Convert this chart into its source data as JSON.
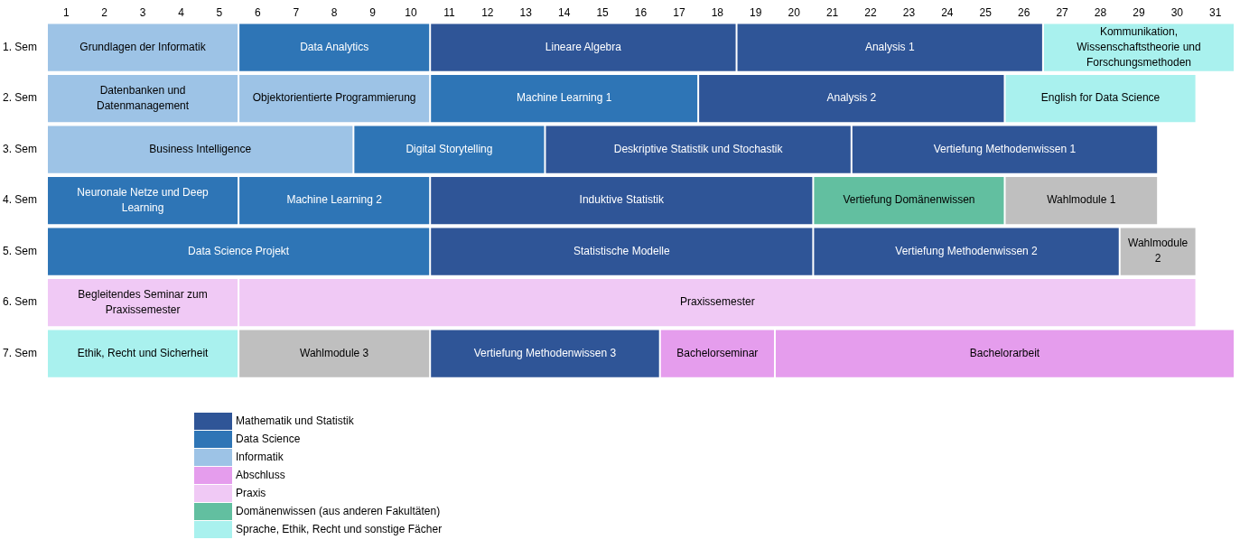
{
  "chart_data": {
    "type": "bar",
    "orientation": "horizontal",
    "stacked": true,
    "legend": "bottom left",
    "grid": false,
    "categories": [
      "1. Sem",
      "2. Sem",
      "3. Sem",
      "4. Sem",
      "5. Sem",
      "6. Sem",
      "7. Sem"
    ],
    "xlim": [
      0,
      31
    ],
    "xticks": [
      {
        "value": 0.5,
        "label": "1"
      },
      {
        "value": 1.5,
        "label": "2"
      },
      {
        "value": 2.5,
        "label": "3"
      },
      {
        "value": 3.5,
        "label": "4"
      },
      {
        "value": 4.5,
        "label": "5"
      },
      {
        "value": 5.5,
        "label": "6"
      },
      {
        "value": 6.5,
        "label": "7"
      },
      {
        "value": 7.5,
        "label": "8"
      },
      {
        "value": 8.5,
        "label": "9"
      },
      {
        "value": 9.5,
        "label": "10"
      },
      {
        "value": 10.5,
        "label": "11"
      },
      {
        "value": 11.5,
        "label": "12"
      },
      {
        "value": 12.5,
        "label": "13"
      },
      {
        "value": 13.5,
        "label": "14"
      },
      {
        "value": 14.5,
        "label": "15"
      },
      {
        "value": 15.5,
        "label": "16"
      },
      {
        "value": 16.5,
        "label": "17"
      },
      {
        "value": 17.5,
        "label": "18"
      },
      {
        "value": 18.5,
        "label": "19"
      },
      {
        "value": 19.5,
        "label": "20"
      },
      {
        "value": 20.5,
        "label": "21"
      },
      {
        "value": 21.5,
        "label": "22"
      },
      {
        "value": 22.5,
        "label": "23"
      },
      {
        "value": 23.5,
        "label": "24"
      },
      {
        "value": 24.5,
        "label": "25"
      },
      {
        "value": 25.5,
        "label": "26"
      },
      {
        "value": 26.5,
        "label": "27"
      },
      {
        "value": 27.5,
        "label": "28"
      },
      {
        "value": 28.5,
        "label": "29"
      },
      {
        "value": 29.5,
        "label": "30"
      },
      {
        "value": 30.5,
        "label": "31"
      }
    ],
    "series": [
      {
        "values": [
          5,
          5,
          8,
          5,
          10,
          5,
          5
        ],
        "colors": [
          "#9dc3e6",
          "#9dc3e6",
          "#9dc3e6",
          "#2e75b6",
          "#2e75b6",
          "#f0c9f5",
          "#a9f1ee"
        ],
        "value_labels": [
          "Grundlagen der Informatik",
          "Datenbanken und Datenmanagement",
          "Business Intelligence",
          "Neuronale Netze und Deep Learning",
          "Data Science Projekt",
          "Begleitendes Seminar zum Praxissemester",
          "Ethik, Recht und Sicherheit"
        ]
      },
      {
        "values": [
          5,
          5,
          5,
          5,
          10,
          25,
          5
        ],
        "colors": [
          "#2e75b6",
          "#9dc3e6",
          "#2e75b6",
          "#2e75b6",
          "#2f5597",
          "#f0c9f5",
          "#bfbfbf"
        ],
        "value_labels": [
          "Data Analytics",
          "Objektorientierte Programmierung",
          "Digital Storytelling",
          "Machine Learning 2",
          "Statistische Modelle",
          "Praxissemester",
          "Wahlmodule 3"
        ]
      },
      {
        "values": [
          8,
          7,
          8,
          10,
          8,
          null,
          6
        ],
        "colors": [
          "#2f5597",
          "#2e75b6",
          "#2f5597",
          "#2f5597",
          "#2f5597",
          null,
          "#2f5597"
        ],
        "value_labels": [
          "Lineare Algebra",
          "Machine Learning 1",
          "Deskriptive Statistik und Stochastik",
          "Induktive Statistik",
          "Vertiefung Methodenwissen 2",
          null,
          "Vertiefung Methodenwissen 3"
        ]
      },
      {
        "values": [
          8,
          8,
          8,
          5,
          2,
          null,
          3
        ],
        "colors": [
          "#2f5597",
          "#2f5597",
          "#2f5597",
          "#62bfa0",
          "#bfbfbf",
          null,
          "#e59ded"
        ],
        "value_labels": [
          "Analysis 1",
          "Analysis 2",
          "Vertiefung Methodenwissen 1",
          "Vertiefung Domänenwissen",
          "Wahlmodule 2",
          null,
          "Bachelorseminar"
        ]
      },
      {
        "values": [
          5,
          5,
          null,
          4,
          null,
          null,
          12
        ],
        "colors": [
          "#a9f1ee",
          "#a9f1ee",
          null,
          "#bfbfbf",
          null,
          null,
          "#e59ded"
        ],
        "value_labels": [
          "Kommunikation, Wissenschaftstheorie und Forschungsmethoden",
          "English for Data Science",
          null,
          "Wahlmodule 1",
          null,
          null,
          "Bachelorarbeit"
        ]
      },
      {
        "name": "Mathematik und Statistik",
        "color": "#2f5597",
        "values": [
          null,
          null,
          null,
          null,
          null,
          null,
          null
        ]
      },
      {
        "name": "Data Science",
        "color": "#2e75b6",
        "values": [
          null,
          null,
          null,
          null,
          null,
          null,
          null
        ]
      },
      {
        "name": "Informatik",
        "color": "#9dc3e6",
        "values": [
          null,
          null,
          null,
          null,
          null,
          null,
          null
        ]
      },
      {
        "name": "Abschluss",
        "color": "#e59ded",
        "values": [
          null,
          null,
          null,
          null,
          null,
          null,
          null
        ]
      },
      {
        "name": "Praxis",
        "color": "#f0c9f5",
        "values": [
          null,
          null,
          null,
          null,
          null,
          null,
          null
        ]
      },
      {
        "name": "Domänenwissen (aus anderen Fakultäten)",
        "color": "#62bfa0",
        "values": [
          null,
          null,
          null,
          null,
          null,
          null,
          null
        ]
      },
      {
        "name": "Sprache, Ethik, Recht und sonstige Fächer",
        "color": "#a9f1ee",
        "values": [
          null,
          null,
          null,
          null,
          null,
          null,
          null
        ]
      }
    ]
  }
}
